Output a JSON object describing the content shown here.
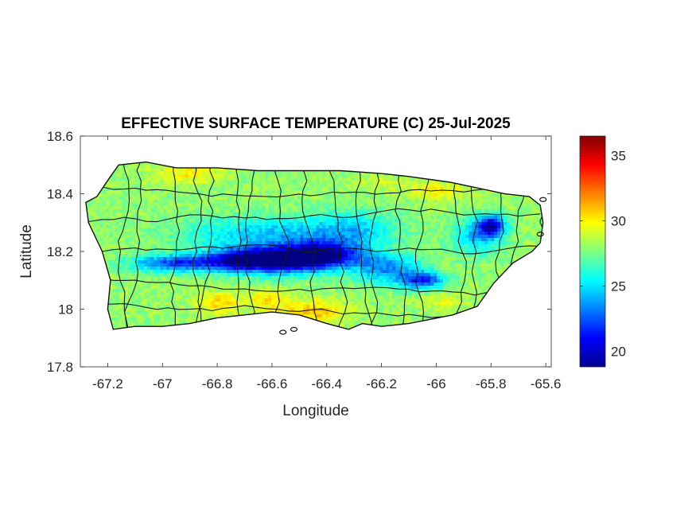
{
  "chart_data": {
    "type": "heatmap",
    "title": "EFFECTIVE SURFACE TEMPERATURE (C) 25-Jul-2025",
    "xlabel": "Longitude",
    "ylabel": "Latitude",
    "xlim": [
      -67.3,
      -65.58
    ],
    "ylim": [
      17.8,
      18.6
    ],
    "x_ticks": [
      -67.2,
      -67,
      -66.8,
      -66.6,
      -66.4,
      -66.2,
      -66,
      -65.8,
      -65.6
    ],
    "x_tick_labels": [
      "-67.2",
      "-67",
      "-66.8",
      "-66.6",
      "-66.4",
      "-66.2",
      "-66",
      "-65.8",
      "-65.6"
    ],
    "y_ticks": [
      17.8,
      18,
      18.2,
      18.4,
      18.6
    ],
    "y_tick_labels": [
      "17.8",
      "18",
      "18.2",
      "18.4",
      "18.6"
    ],
    "colorbar": {
      "colormap": "jet",
      "range": [
        18.8,
        36.5
      ],
      "ticks": [
        20,
        25,
        30,
        35
      ],
      "tick_labels": [
        "20",
        "25",
        "30",
        "35"
      ]
    },
    "grid": false,
    "region_outline": [
      [
        -67.28,
        18.37
      ],
      [
        -67.24,
        18.39
      ],
      [
        -67.19,
        18.46
      ],
      [
        -67.16,
        18.5
      ],
      [
        -67.06,
        18.51
      ],
      [
        -66.95,
        18.49
      ],
      [
        -66.8,
        18.49
      ],
      [
        -66.65,
        18.48
      ],
      [
        -66.5,
        18.48
      ],
      [
        -66.35,
        18.48
      ],
      [
        -66.2,
        18.47
      ],
      [
        -66.1,
        18.46
      ],
      [
        -65.95,
        18.44
      ],
      [
        -65.85,
        18.42
      ],
      [
        -65.75,
        18.4
      ],
      [
        -65.66,
        18.39
      ],
      [
        -65.62,
        18.36
      ],
      [
        -65.61,
        18.3
      ],
      [
        -65.62,
        18.23
      ],
      [
        -65.65,
        18.2
      ],
      [
        -65.72,
        18.16
      ],
      [
        -65.79,
        18.09
      ],
      [
        -65.85,
        18.01
      ],
      [
        -65.94,
        17.98
      ],
      [
        -66.1,
        17.95
      ],
      [
        -66.2,
        17.94
      ],
      [
        -66.27,
        17.95
      ],
      [
        -66.32,
        17.93
      ],
      [
        -66.4,
        17.95
      ],
      [
        -66.5,
        17.98
      ],
      [
        -66.6,
        17.99
      ],
      [
        -66.7,
        17.98
      ],
      [
        -66.8,
        17.97
      ],
      [
        -66.9,
        17.95
      ],
      [
        -67.0,
        17.94
      ],
      [
        -67.1,
        17.94
      ],
      [
        -67.18,
        17.93
      ],
      [
        -67.2,
        18.0
      ],
      [
        -67.19,
        18.1
      ],
      [
        -67.22,
        18.2
      ],
      [
        -67.27,
        18.3
      ]
    ],
    "temperature_features": [
      {
        "lon": -66.55,
        "lat": 18.17,
        "value": 19.5,
        "spread_lon": 0.16,
        "spread_lat": 0.045
      },
      {
        "lon": -66.4,
        "lat": 18.19,
        "value": 21.0,
        "spread_lon": 0.14,
        "spread_lat": 0.045
      },
      {
        "lon": -66.72,
        "lat": 18.17,
        "value": 21.5,
        "spread_lon": 0.13,
        "spread_lat": 0.04
      },
      {
        "lon": -66.95,
        "lat": 18.16,
        "value": 22.0,
        "spread_lon": 0.16,
        "spread_lat": 0.03
      },
      {
        "lon": -66.6,
        "lat": 18.26,
        "value": 24.5,
        "spread_lon": 0.32,
        "spread_lat": 0.06
      },
      {
        "lon": -66.18,
        "lat": 18.14,
        "value": 23.5,
        "spread_lon": 0.12,
        "spread_lat": 0.05
      },
      {
        "lon": -66.05,
        "lat": 18.1,
        "value": 22.0,
        "spread_lon": 0.08,
        "spread_lat": 0.03
      },
      {
        "lon": -65.8,
        "lat": 18.29,
        "value": 20.5,
        "spread_lon": 0.05,
        "spread_lat": 0.035
      },
      {
        "lon": -65.85,
        "lat": 18.25,
        "value": 24.5,
        "spread_lon": 0.09,
        "spread_lat": 0.06
      },
      {
        "lon": -66.3,
        "lat": 18.28,
        "value": 25.5,
        "spread_lon": 0.15,
        "spread_lat": 0.06
      },
      {
        "lon": -66.45,
        "lat": 17.99,
        "value": 31.0,
        "spread_lon": 0.12,
        "spread_lat": 0.04
      },
      {
        "lon": -66.8,
        "lat": 18.02,
        "value": 30.5,
        "spread_lon": 0.08,
        "spread_lat": 0.04
      },
      {
        "lon": -66.62,
        "lat": 18.03,
        "value": 30.0,
        "spread_lon": 0.08,
        "spread_lat": 0.04
      },
      {
        "lon": -66.9,
        "lat": 18.47,
        "value": 30.0,
        "spread_lon": 0.12,
        "spread_lat": 0.03
      },
      {
        "lon": -66.0,
        "lat": 18.41,
        "value": 30.0,
        "spread_lon": 0.12,
        "spread_lat": 0.03
      },
      {
        "lon": -66.2,
        "lat": 18.44,
        "value": 29.0,
        "spread_lon": 0.08,
        "spread_lat": 0.03
      },
      {
        "lon": -65.98,
        "lat": 18.03,
        "value": 29.5,
        "spread_lon": 0.08,
        "spread_lat": 0.03
      }
    ],
    "offshore_islets": [
      [
        -66.56,
        17.92
      ],
      [
        -66.52,
        17.93
      ],
      [
        -65.61,
        18.38
      ],
      [
        -65.62,
        18.26
      ]
    ]
  }
}
